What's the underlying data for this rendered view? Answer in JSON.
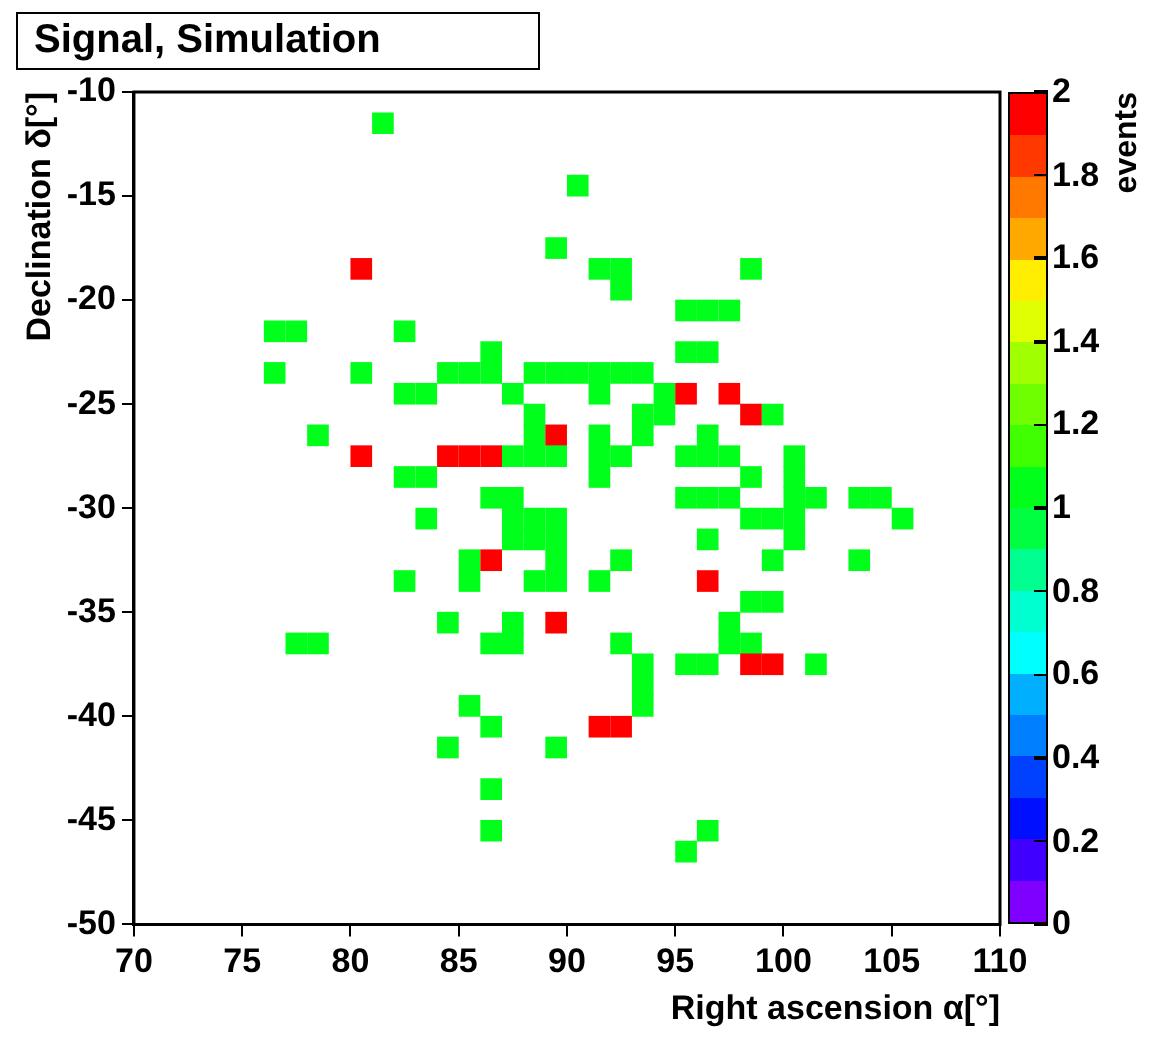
{
  "chart_data": {
    "type": "scatter",
    "title": "Signal, Simulation",
    "xlabel": "Right ascension α[°]",
    "ylabel": "Declination δ[°]",
    "clabel": "events",
    "marker": "square",
    "grid": false,
    "legend": false,
    "xlim": [
      70,
      110
    ],
    "xticks": [
      70,
      75,
      80,
      85,
      90,
      95,
      100,
      105,
      110
    ],
    "ylim": [
      -50,
      -10
    ],
    "yticks": [
      -50,
      -45,
      -40,
      -35,
      -30,
      -25,
      -20,
      -15,
      -10
    ],
    "clim": [
      0,
      2
    ],
    "cticks": [
      0,
      0.2,
      0.4,
      0.6,
      0.8,
      1,
      1.2,
      1.4,
      1.6,
      1.8,
      2
    ],
    "x": [
      81.5,
      90.5,
      89.5,
      80.5,
      91.5,
      92.5,
      98.5,
      92.5,
      95.5,
      96.5,
      97.5,
      76.5,
      77.5,
      82.5,
      86.5,
      95.5,
      96.5,
      76.5,
      80.5,
      84.5,
      85.5,
      86.5,
      88.5,
      89.5,
      90.5,
      91.5,
      92.5,
      93.5,
      82.5,
      83.5,
      87.5,
      91.5,
      94.5,
      95.5,
      97.5,
      88.5,
      93.5,
      94.5,
      98.5,
      99.5,
      78.5,
      88.5,
      89.5,
      91.5,
      93.5,
      96.5,
      80.5,
      84.5,
      85.5,
      86.5,
      87.5,
      88.5,
      89.5,
      91.5,
      92.5,
      95.5,
      96.5,
      97.5,
      100.5,
      82.5,
      83.5,
      91.5,
      98.5,
      100.5,
      86.5,
      87.5,
      95.5,
      96.5,
      97.5,
      100.5,
      101.5,
      103.5,
      104.5,
      83.5,
      87.5,
      88.5,
      89.5,
      98.5,
      99.5,
      100.5,
      105.5,
      87.5,
      88.5,
      89.5,
      96.5,
      100.5,
      85.5,
      86.5,
      89.5,
      92.5,
      99.5,
      103.5,
      82.5,
      85.5,
      88.5,
      89.5,
      91.5,
      96.5,
      98.5,
      99.5,
      84.5,
      87.5,
      89.5,
      97.5,
      77.5,
      78.5,
      86.5,
      87.5,
      92.5,
      97.5,
      98.5,
      93.5,
      95.5,
      96.5,
      98.5,
      99.5,
      101.5,
      93.5,
      85.5,
      93.5,
      86.5,
      91.5,
      92.5,
      84.5,
      89.5,
      86.5,
      86.5,
      96.5,
      95.5
    ],
    "values": [
      -11.5,
      -14.5,
      -17.5,
      -18.5,
      -18.5,
      -18.5,
      -18.5,
      -19.5,
      -20.5,
      -20.5,
      -20.5,
      -21.5,
      -21.5,
      -21.5,
      -22.5,
      -22.5,
      -22.5,
      -23.5,
      -23.5,
      -23.5,
      -23.5,
      -23.5,
      -23.5,
      -23.5,
      -23.5,
      -23.5,
      -23.5,
      -23.5,
      -24.5,
      -24.5,
      -24.5,
      -24.5,
      -24.5,
      -24.5,
      -24.5,
      -25.5,
      -25.5,
      -25.5,
      -25.5,
      -25.5,
      -26.5,
      -26.5,
      -26.5,
      -26.5,
      -26.5,
      -26.5,
      -27.5,
      -27.5,
      -27.5,
      -27.5,
      -27.5,
      -27.5,
      -27.5,
      -27.5,
      -27.5,
      -27.5,
      -27.5,
      -27.5,
      -27.5,
      -28.5,
      -28.5,
      -28.5,
      -28.5,
      -28.5,
      -29.5,
      -29.5,
      -29.5,
      -29.5,
      -29.5,
      -29.5,
      -29.5,
      -29.5,
      -29.5,
      -30.5,
      -30.5,
      -30.5,
      -30.5,
      -30.5,
      -30.5,
      -30.5,
      -30.5,
      -31.5,
      -31.5,
      -31.5,
      -31.5,
      -31.5,
      -32.5,
      -32.5,
      -32.5,
      -32.5,
      -32.5,
      -32.5,
      -33.5,
      -33.5,
      -33.5,
      -33.5,
      -33.5,
      -33.5,
      -34.5,
      -34.5,
      -35.5,
      -35.5,
      -35.5,
      -35.5,
      -36.5,
      -36.5,
      -36.5,
      -36.5,
      -36.5,
      -36.5,
      -36.5,
      -37.5,
      -37.5,
      -37.5,
      -37.5,
      -37.5,
      -37.5,
      -38.5,
      -39.5,
      -39.5,
      -40.5,
      -40.5,
      -40.5,
      -41.5,
      -41.5,
      -43.5,
      -45.5,
      -45.5,
      -46.5
    ],
    "cvalues": [
      1,
      1,
      1,
      2,
      1,
      1,
      1,
      1,
      1,
      1,
      1,
      1,
      1,
      1,
      1,
      1,
      1,
      1,
      1,
      1,
      1,
      1,
      1,
      1,
      1,
      1,
      1,
      1,
      1,
      1,
      1,
      1,
      1,
      2,
      2,
      1,
      1,
      1,
      2,
      1,
      1,
      1,
      2,
      1,
      1,
      1,
      2,
      2,
      2,
      2,
      1,
      1,
      1,
      1,
      1,
      1,
      1,
      1,
      1,
      1,
      1,
      1,
      1,
      1,
      1,
      1,
      1,
      1,
      1,
      1,
      1,
      1,
      1,
      1,
      1,
      1,
      1,
      1,
      1,
      1,
      1,
      1,
      1,
      1,
      1,
      1,
      1,
      2,
      1,
      1,
      1,
      1,
      1,
      1,
      1,
      1,
      1,
      2,
      1,
      1,
      1,
      1,
      2,
      1,
      1,
      1,
      1,
      1,
      1,
      1,
      1,
      1,
      1,
      1,
      2,
      2,
      1,
      1,
      1,
      1,
      1,
      2,
      2,
      1,
      1,
      1,
      1,
      1,
      1
    ]
  }
}
